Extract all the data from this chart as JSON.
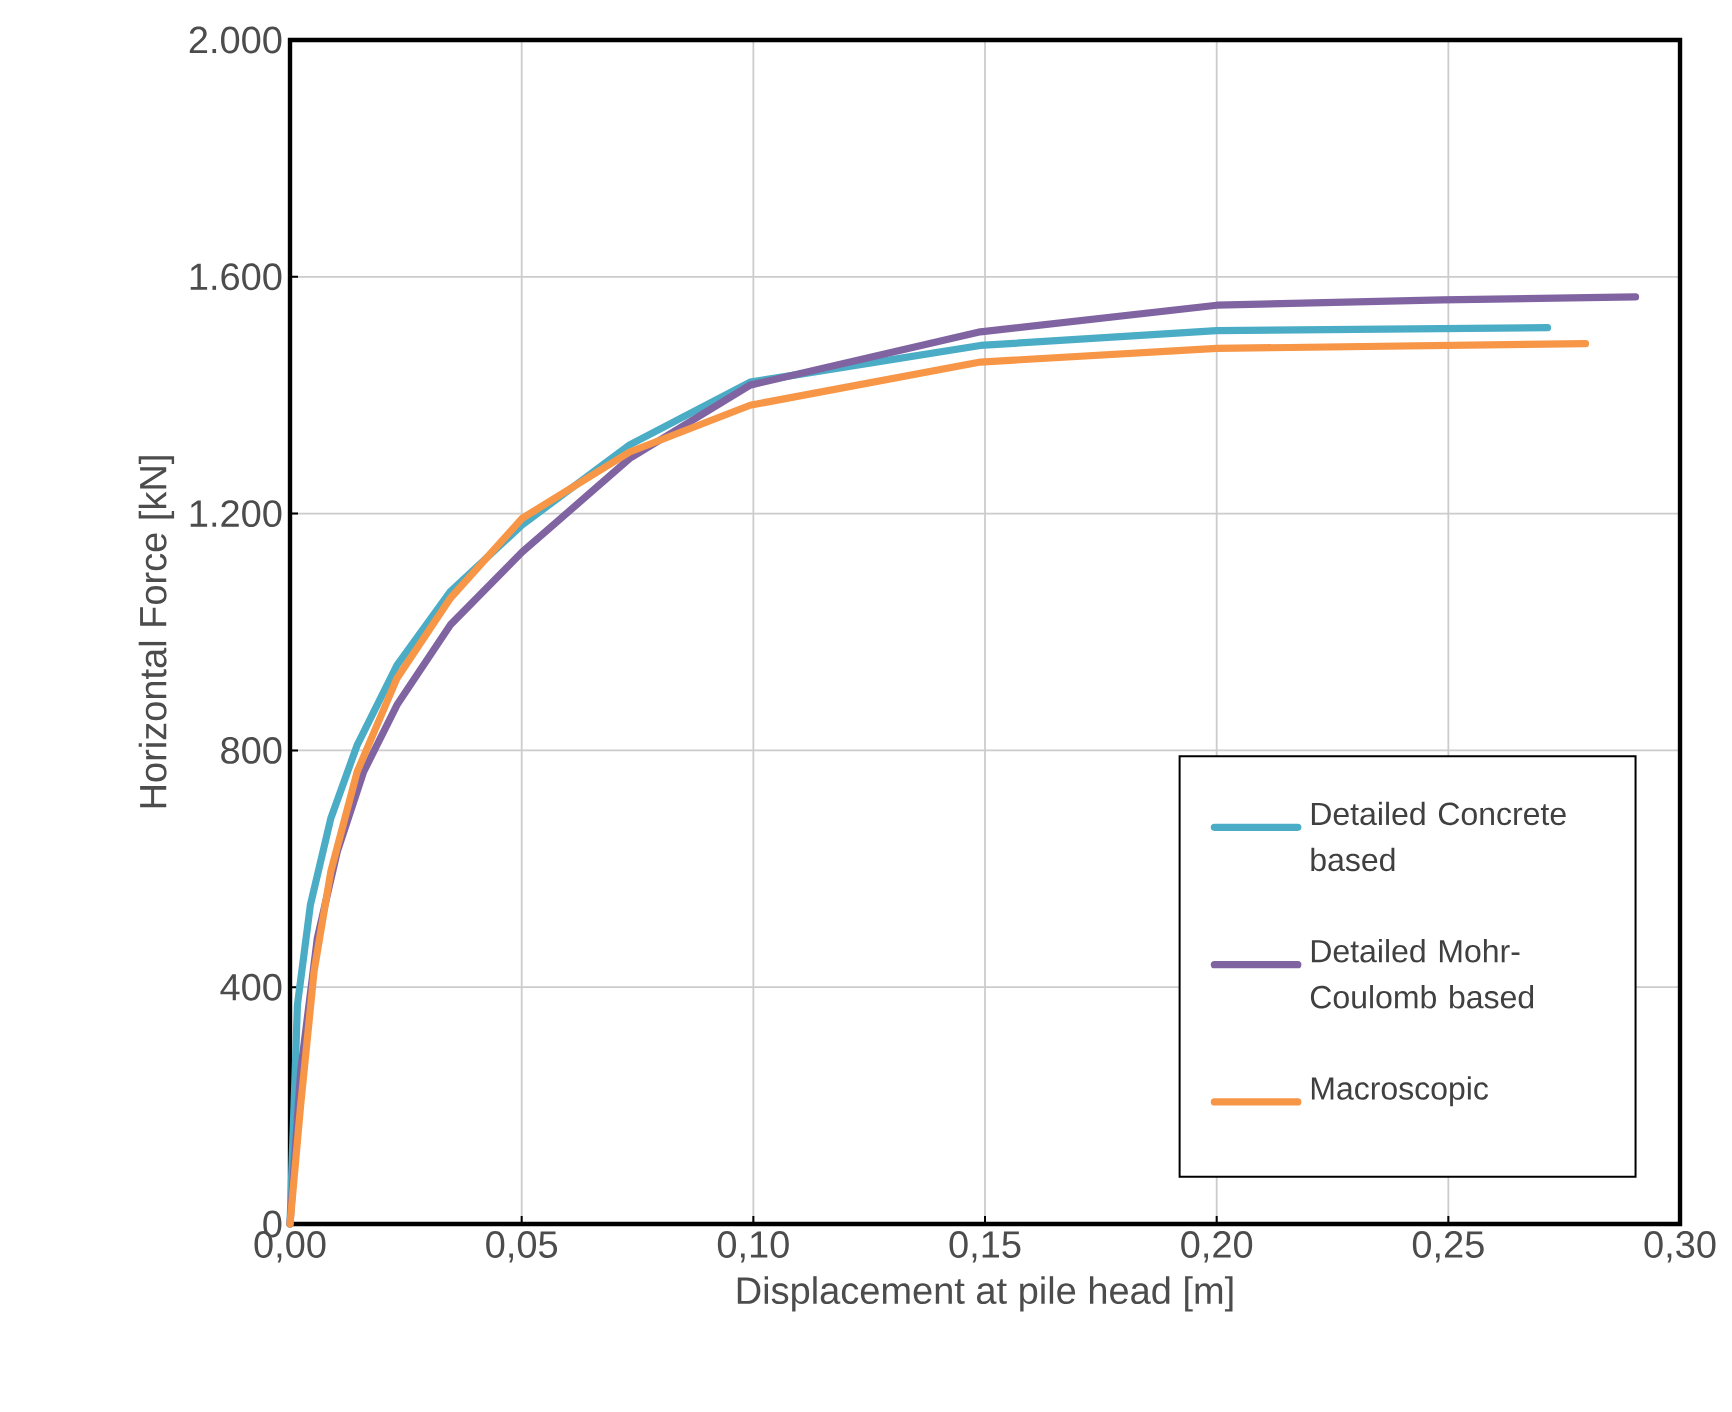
{
  "chart_data": {
    "type": "line",
    "xlabel": "Displacement at pile head [m]",
    "ylabel": "Horizontal Force [kN]",
    "xlim": [
      0,
      0.3
    ],
    "ylim": [
      0,
      2000
    ],
    "xticks": [
      {
        "value": 0,
        "label": "0,00"
      },
      {
        "value": 0.05,
        "label": "0,05"
      },
      {
        "value": 0.1,
        "label": "0,10"
      },
      {
        "value": 0.15,
        "label": "0,15"
      },
      {
        "value": 0.2,
        "label": "0,20"
      },
      {
        "value": 0.25,
        "label": "0,25"
      },
      {
        "value": 0.3,
        "label": "0,30"
      }
    ],
    "yticks": [
      {
        "value": 0,
        "label": "0"
      },
      {
        "value": 400,
        "label": "400"
      },
      {
        "value": 800,
        "label": "800"
      },
      {
        "value": 1200,
        "label": "1.200"
      },
      {
        "value": 1600,
        "label": "1.600"
      },
      {
        "value": 2000,
        "label": "2.000"
      }
    ],
    "grid": true,
    "legend": "bottom right",
    "marker": "none",
    "line_style": "solid",
    "series": [
      {
        "name": "Detailed Concrete based",
        "color": "#4bacc6",
        "x": [
          0,
          0.0016,
          0.0044,
          0.0088,
          0.0145,
          0.0231,
          0.0346,
          0.0501,
          0.0733,
          0.0993,
          0.149,
          0.2,
          0.2714
        ],
        "values": [
          0,
          370,
          539,
          685,
          809,
          944,
          1068,
          1181,
          1316,
          1422,
          1484,
          1509,
          1514
        ]
      },
      {
        "name": "Detailed Mohr-Coulomb based",
        "color": "#8064a2",
        "x": [
          0,
          0.0023,
          0.0059,
          0.0102,
          0.0159,
          0.0231,
          0.0346,
          0.0501,
          0.0733,
          0.0993,
          0.149,
          0.2,
          0.2487,
          0.2904
        ],
        "values": [
          0,
          258,
          483,
          629,
          764,
          877,
          1012,
          1135,
          1293,
          1417,
          1507,
          1552,
          1561,
          1566
        ]
      },
      {
        "name": "Macroscopic",
        "color": "#f79646",
        "x": [
          0,
          0.0023,
          0.0052,
          0.0088,
          0.0145,
          0.0231,
          0.0346,
          0.0501,
          0.0733,
          0.0993,
          0.149,
          0.2,
          0.2796
        ],
        "values": [
          0,
          201,
          427,
          595,
          764,
          922,
          1057,
          1192,
          1304,
          1383,
          1456,
          1479,
          1487
        ]
      }
    ]
  }
}
